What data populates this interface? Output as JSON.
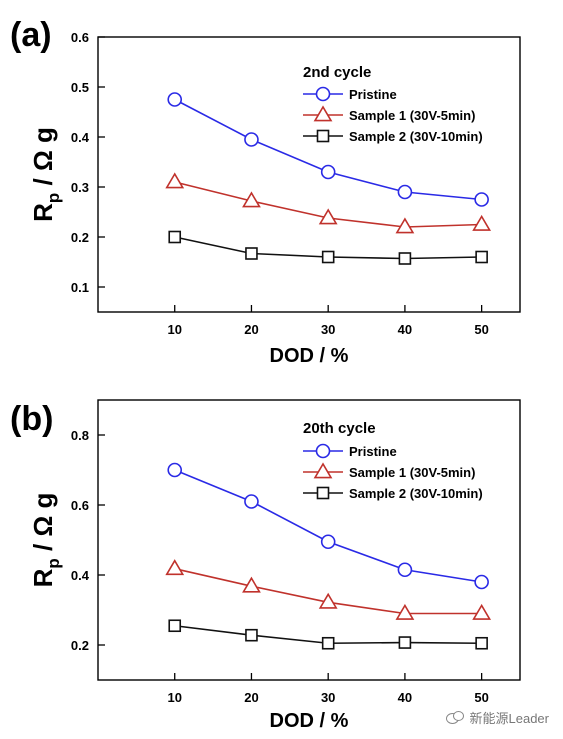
{
  "chart_data": [
    {
      "panel_label": "(a)",
      "type": "line",
      "legend_title": "2nd cycle",
      "legend_position": "top-right",
      "xlabel": "DOD / %",
      "ylabel": "R",
      "ylabel_sub": "p",
      "ylabel_units": " / Ω g",
      "x": [
        10,
        20,
        30,
        40,
        50
      ],
      "xlim": [
        0,
        55
      ],
      "ylim": [
        0.05,
        0.6
      ],
      "xticks": [
        10,
        20,
        30,
        40,
        50
      ],
      "yticks": [
        0.1,
        0.2,
        0.3,
        0.4,
        0.5,
        0.6
      ],
      "ytick_labels": [
        "0.1",
        "0.2",
        "0.3",
        "0.4",
        "0.5",
        "0.6"
      ],
      "series": [
        {
          "name": "Pristine",
          "color": "#2a2ae6",
          "marker": "circle",
          "values": [
            0.475,
            0.395,
            0.33,
            0.29,
            0.275
          ]
        },
        {
          "name": "Sample 1 (30V-5min)",
          "color": "#c0322c",
          "marker": "triangle",
          "values": [
            0.31,
            0.272,
            0.238,
            0.22,
            0.225
          ]
        },
        {
          "name": "Sample 2 (30V-10min)",
          "color": "#111111",
          "marker": "square",
          "values": [
            0.2,
            0.167,
            0.16,
            0.157,
            0.16
          ]
        }
      ]
    },
    {
      "panel_label": "(b)",
      "type": "line",
      "legend_title": "20th cycle",
      "legend_position": "top-right",
      "xlabel": "DOD / %",
      "ylabel": "R",
      "ylabel_sub": "p",
      "ylabel_units": " / Ω g",
      "x": [
        10,
        20,
        30,
        40,
        50
      ],
      "xlim": [
        0,
        55
      ],
      "ylim": [
        0.1,
        0.9
      ],
      "xticks": [
        10,
        20,
        30,
        40,
        50
      ],
      "yticks": [
        0.2,
        0.4,
        0.6,
        0.8
      ],
      "ytick_labels": [
        "0.2",
        "0.4",
        "0.6",
        "0.8"
      ],
      "series": [
        {
          "name": "Pristine",
          "color": "#2a2ae6",
          "marker": "circle",
          "values": [
            0.7,
            0.61,
            0.495,
            0.415,
            0.38
          ]
        },
        {
          "name": "Sample 1 (30V-5min)",
          "color": "#c0322c",
          "marker": "triangle",
          "values": [
            0.418,
            0.368,
            0.322,
            0.29,
            0.29
          ]
        },
        {
          "name": "Sample 2 (30V-10min)",
          "color": "#111111",
          "marker": "square",
          "values": [
            0.255,
            0.228,
            0.205,
            0.207,
            0.205
          ]
        }
      ]
    }
  ],
  "watermark": {
    "icon": "wechat-icon",
    "text": "新能源Leader"
  }
}
